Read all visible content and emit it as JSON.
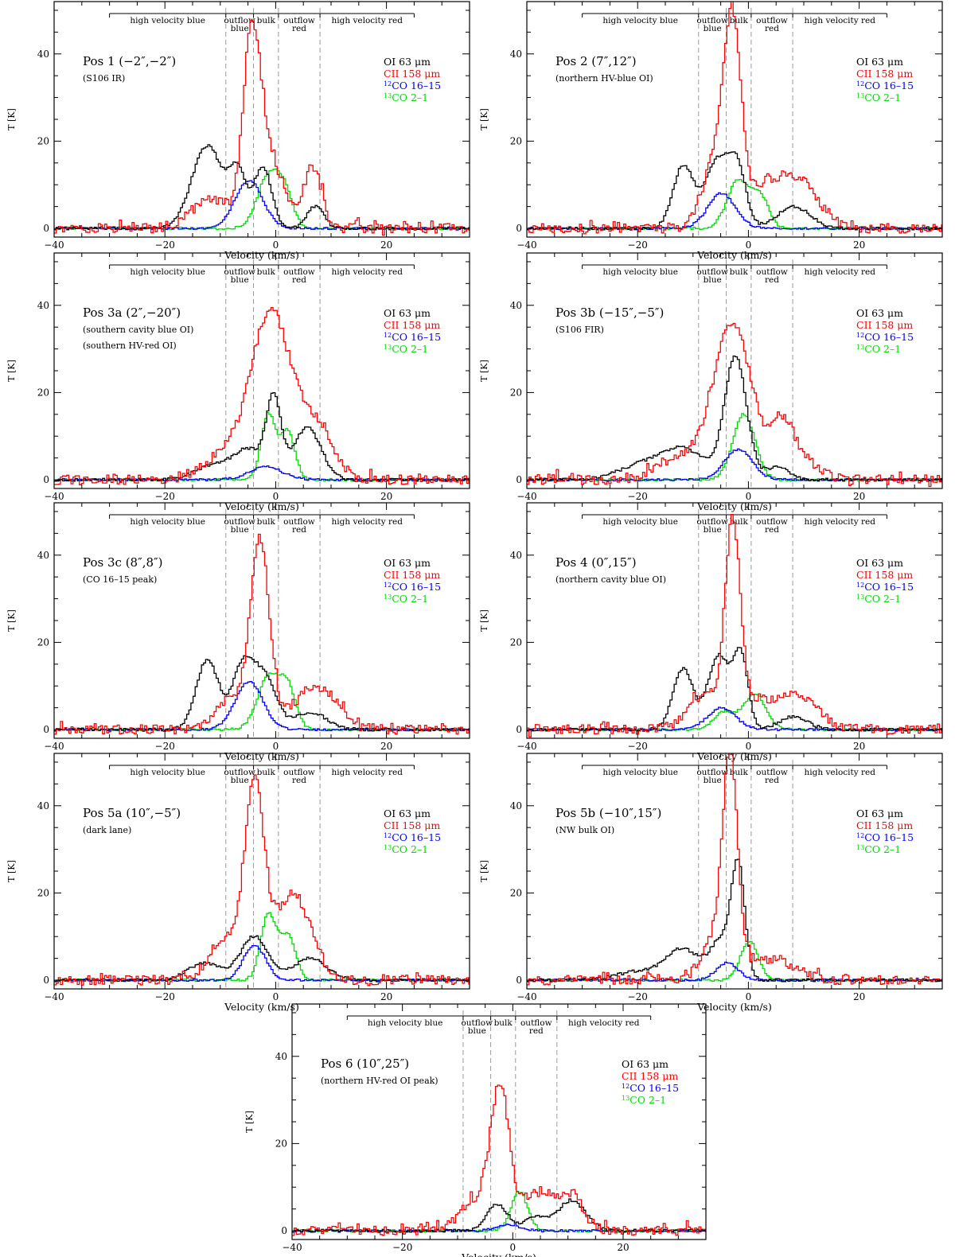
{
  "figure": {
    "legend": [
      {
        "label": "OI 63 μm",
        "color": "#000000"
      },
      {
        "label": "CII 158 μm",
        "color": "#ff0000"
      },
      {
        "label": "12CO 16–15",
        "sup": "12",
        "rest": "CO 16–15",
        "color": "#0000ff"
      },
      {
        "label": "13CO 2–1",
        "sup": "13",
        "rest": "CO 2–1",
        "color": "#00dd00"
      }
    ],
    "regions": {
      "high_velocity_blue": "high velocity blue",
      "outflow_blue": [
        "outflow",
        "blue"
      ],
      "bulk": "bulk",
      "outflow_red": [
        "outflow",
        "red"
      ],
      "high_velocity_red": "high velocity red",
      "boundaries_kms": [
        -30,
        -9,
        -4,
        0.5,
        8,
        25
      ]
    }
  },
  "chart_data": [
    {
      "type": "line",
      "title": "Pos 1 (−2″,−2″)",
      "subtitle": "(S106 IR)",
      "xlabel": "Velocity (km/s)",
      "ylabel": "T [K]",
      "xlim": [
        -40,
        35
      ],
      "ylim": [
        -2,
        52
      ],
      "xticks": [
        -40,
        -20,
        0,
        20
      ],
      "yticks": [
        0,
        20,
        40
      ],
      "series": [
        {
          "name": "OI 63 μm",
          "peaks": [
            [
              -12.5,
              19,
              2.8
            ],
            [
              -7,
              12,
              1.5
            ],
            [
              -2.5,
              14,
              1.6
            ],
            [
              7,
              5,
              1.5
            ]
          ]
        },
        {
          "name": "CII 158 μm",
          "peaks": [
            [
              -4.5,
              41,
              1.6
            ],
            [
              -12,
              7,
              3.5
            ],
            [
              -1,
              15,
              2.5
            ],
            [
              6.5,
              14,
              1.6
            ]
          ]
        },
        {
          "name": "12CO 16–15",
          "peaks": [
            [
              -5,
              11,
              2.5
            ]
          ]
        },
        {
          "name": "13CO 2–1",
          "peaks": [
            [
              -1.5,
              12,
              2
            ],
            [
              1.5,
              7,
              1.5
            ]
          ]
        }
      ]
    },
    {
      "type": "line",
      "title": "Pos 2 (7″,12″)",
      "subtitle": "(northern HV-blue OI)",
      "xlabel": "Velocity (km/s)",
      "ylabel": "T [K]",
      "xlim": [
        -40,
        35
      ],
      "ylim": [
        -2,
        52
      ],
      "xticks": [
        -40,
        -20,
        0,
        20
      ],
      "yticks": [
        0,
        20,
        40
      ],
      "series": [
        {
          "name": "OI 63 μm",
          "peaks": [
            [
              -12,
              14,
              1.8
            ],
            [
              -5.5,
              16,
              2.5
            ],
            [
              -2,
              10,
              1.5
            ],
            [
              8,
              5,
              3
            ]
          ]
        },
        {
          "name": "CII 158 μm",
          "peaks": [
            [
              -3,
              43,
              1.6
            ],
            [
              -6,
              15,
              2.5
            ],
            [
              8,
              12,
              4
            ],
            [
              2,
              6,
              2
            ]
          ]
        },
        {
          "name": "12CO 16–15",
          "peaks": [
            [
              -5,
              8,
              2.5
            ]
          ]
        },
        {
          "name": "13CO 2–1",
          "peaks": [
            [
              -2,
              11,
              2
            ],
            [
              2,
              7,
              1.5
            ]
          ]
        }
      ]
    },
    {
      "type": "line",
      "title": "Pos 3a (2″,−20″)",
      "subtitle": "(southern cavity blue OI)",
      "subtitle2": "(southern HV-red OI)",
      "xlabel": "Velocity (km/s)",
      "ylabel": "T [K]",
      "xlim": [
        -40,
        35
      ],
      "ylim": [
        -2,
        52
      ],
      "xticks": [
        -40,
        -20,
        0,
        20
      ],
      "yticks": [
        0,
        20,
        40
      ],
      "series": [
        {
          "name": "OI 63 μm",
          "peaks": [
            [
              -0.5,
              17,
              1.3
            ],
            [
              -5,
              7,
              3
            ],
            [
              5.5,
              12,
              2.5
            ],
            [
              -12,
              3,
              3
            ]
          ]
        },
        {
          "name": "CII 158 μm",
          "peaks": [
            [
              -1,
              38,
              3.5
            ],
            [
              -9,
              6,
              4
            ],
            [
              7,
              12,
              3
            ]
          ]
        },
        {
          "name": "12CO 16–15",
          "peaks": [
            [
              -2,
              3,
              3
            ]
          ]
        },
        {
          "name": "13CO 2–1",
          "peaks": [
            [
              -1.5,
              15,
              1.3
            ],
            [
              2,
              11,
              1.3
            ]
          ]
        }
      ]
    },
    {
      "type": "line",
      "title": "Pos 3b (−15″,−5″)",
      "subtitle": "(S106 FIR)",
      "xlabel": "Velocity (km/s)",
      "ylabel": "T [K]",
      "xlim": [
        -40,
        35
      ],
      "ylim": [
        -2,
        52
      ],
      "xticks": [
        -40,
        -20,
        0,
        20
      ],
      "yticks": [
        0,
        20,
        40
      ],
      "series": [
        {
          "name": "OI 63 μm",
          "peaks": [
            [
              -2.5,
              28,
              2
            ],
            [
              -12,
              7,
              4
            ],
            [
              -20,
              3,
              4
            ],
            [
              5,
              3,
              2
            ]
          ]
        },
        {
          "name": "CII 158 μm",
          "peaks": [
            [
              -3,
              36,
              3.5
            ],
            [
              6,
              12,
              2
            ],
            [
              -13,
              5,
              4
            ],
            [
              10,
              4,
              3
            ]
          ]
        },
        {
          "name": "12CO 16–15",
          "peaks": [
            [
              -2,
              7,
              2.5
            ]
          ]
        },
        {
          "name": "13CO 2–1",
          "peaks": [
            [
              -1,
              15,
              2
            ]
          ]
        }
      ]
    },
    {
      "type": "line",
      "title": "Pos 3c (8″,8″)",
      "subtitle": "(CO 16–15 peak)",
      "xlabel": "Velocity (km/s)",
      "ylabel": "T [K]",
      "xlim": [
        -40,
        35
      ],
      "ylim": [
        -2,
        52
      ],
      "xticks": [
        -40,
        -20,
        0,
        20
      ],
      "yticks": [
        0,
        20,
        40
      ],
      "series": [
        {
          "name": "OI 63 μm",
          "peaks": [
            [
              -12.5,
              16,
              2
            ],
            [
              -6,
              15,
              2
            ],
            [
              -2,
              11,
              2
            ],
            [
              6,
              4,
              3
            ]
          ]
        },
        {
          "name": "CII 158 μm",
          "peaks": [
            [
              -3,
              42,
              1.7
            ],
            [
              7,
              10,
              4
            ],
            [
              -8,
              7,
              3
            ]
          ]
        },
        {
          "name": "12CO 16–15",
          "peaks": [
            [
              -5,
              11,
              2.5
            ]
          ]
        },
        {
          "name": "13CO 2–1",
          "peaks": [
            [
              -1.5,
              12,
              2
            ],
            [
              2,
              9,
              1.5
            ]
          ]
        }
      ]
    },
    {
      "type": "line",
      "title": "Pos 4 (0″,15″)",
      "subtitle": "(northern cavity blue OI)",
      "xlabel": "Velocity (km/s)",
      "ylabel": "T [K]",
      "xlim": [
        -40,
        35
      ],
      "ylim": [
        -2,
        52
      ],
      "xticks": [
        -40,
        -20,
        0,
        20
      ],
      "yticks": [
        0,
        20,
        40
      ],
      "series": [
        {
          "name": "OI 63 μm",
          "peaks": [
            [
              -12,
              14,
              1.8
            ],
            [
              -5.5,
              17,
              2
            ],
            [
              -1.5,
              16,
              1.3
            ],
            [
              8,
              3,
              2.5
            ]
          ]
        },
        {
          "name": "CII 158 μm",
          "peaks": [
            [
              -3,
              46,
              1.4
            ],
            [
              -8,
              8,
              3
            ],
            [
              8,
              8,
              4
            ],
            [
              1,
              5,
              2
            ]
          ]
        },
        {
          "name": "12CO 16–15",
          "peaks": [
            [
              -5,
              5,
              2.5
            ]
          ]
        },
        {
          "name": "13CO 2–1",
          "peaks": [
            [
              -4.5,
              4,
              2
            ],
            [
              1,
              8,
              2
            ]
          ]
        }
      ]
    },
    {
      "type": "line",
      "title": "Pos 5a (10″,−5″)",
      "subtitle": "(dark lane)",
      "xlabel": "Velocity (km/s)",
      "ylabel": "T [K]",
      "xlim": [
        -40,
        35
      ],
      "ylim": [
        -2,
        52
      ],
      "xticks": [
        -40,
        -20,
        0,
        20
      ],
      "yticks": [
        0,
        20,
        40
      ],
      "series": [
        {
          "name": "OI 63 μm",
          "peaks": [
            [
              -4,
              10,
              2.5
            ],
            [
              -13,
              4,
              3
            ],
            [
              6,
              5,
              3
            ]
          ]
        },
        {
          "name": "CII 158 μm",
          "peaks": [
            [
              -4,
              43,
              1.7
            ],
            [
              -9,
              10,
              3
            ],
            [
              2,
              15,
              3
            ],
            [
              5,
              7,
              3
            ]
          ]
        },
        {
          "name": "12CO 16–15",
          "peaks": [
            [
              -4,
              8,
              2
            ]
          ]
        },
        {
          "name": "13CO 2–1",
          "peaks": [
            [
              -1.5,
              15,
              1.4
            ],
            [
              2,
              10,
              1.4
            ]
          ]
        }
      ]
    },
    {
      "type": "line",
      "title": "Pos 5b (−10″,15″)",
      "subtitle": "(NW bulk OI)",
      "xlabel": "Velocity (km/s)",
      "ylabel": "T [K]",
      "xlim": [
        -40,
        35
      ],
      "ylim": [
        -2,
        52
      ],
      "xticks": [
        -40,
        -20,
        0,
        20
      ],
      "yticks": [
        0,
        20,
        40
      ],
      "series": [
        {
          "name": "OI 63 μm",
          "peaks": [
            [
              -2,
              25,
              1.2
            ],
            [
              -12,
              7,
              3
            ],
            [
              -5,
              9,
              2
            ],
            [
              -20,
              2,
              4
            ]
          ]
        },
        {
          "name": "CII 158 μm",
          "peaks": [
            [
              -3.5,
              50,
              1.4
            ],
            [
              -7,
              8,
              2
            ],
            [
              4,
              5,
              4
            ]
          ]
        },
        {
          "name": "12CO 16–15",
          "peaks": [
            [
              -4,
              4,
              2
            ]
          ]
        },
        {
          "name": "13CO 2–1",
          "peaks": [
            [
              0,
              9,
              1.6
            ]
          ]
        }
      ]
    },
    {
      "type": "line",
      "title": "Pos 6 (10″,25″)",
      "subtitle": "(northern HV-red OI peak)",
      "xlabel": "Velocity (km/s)",
      "ylabel": "T [K]",
      "xlim": [
        -40,
        35
      ],
      "ylim": [
        -2,
        52
      ],
      "xticks": [
        -40,
        -20,
        0,
        20
      ],
      "yticks": [
        0,
        20,
        40
      ],
      "series": [
        {
          "name": "OI 63 μm",
          "peaks": [
            [
              -3,
              6,
              2
            ],
            [
              10.5,
              7,
              2.5
            ],
            [
              4,
              3,
              2
            ]
          ]
        },
        {
          "name": "CII 158 μm",
          "peaks": [
            [
              -2.5,
              31,
              1.7
            ],
            [
              -7,
              7,
              3
            ],
            [
              5,
              9,
              3.5
            ],
            [
              11,
              6,
              2
            ]
          ]
        },
        {
          "name": "12CO 16–15",
          "peaks": [
            [
              -1,
              1.5,
              2
            ]
          ]
        },
        {
          "name": "13CO 2–1",
          "peaks": [
            [
              1,
              9,
              1.5
            ]
          ]
        }
      ]
    }
  ]
}
